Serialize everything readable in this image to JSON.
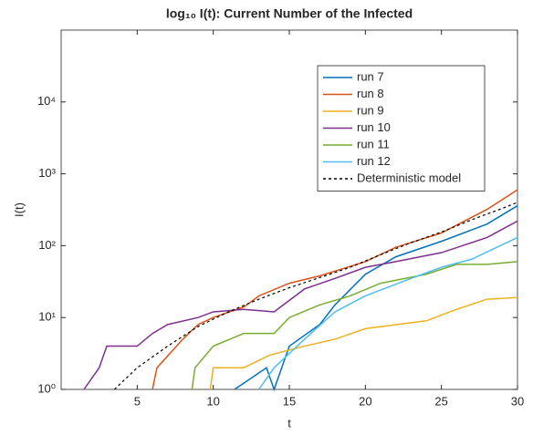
{
  "chart_data": {
    "type": "line",
    "title": "log₁₀ I(t): Current Number of the Infected",
    "xlabel": "t",
    "ylabel": "I(t)",
    "log_y": true,
    "legend": "upper right",
    "xlim": [
      0,
      30
    ],
    "xticks": [
      5,
      10,
      15,
      20,
      25,
      30
    ],
    "ylim": [
      1,
      100000
    ],
    "yticks": [
      {
        "value": 1,
        "label": "10⁰"
      },
      {
        "value": 10,
        "label": "10¹"
      },
      {
        "value": 100,
        "label": "10²"
      },
      {
        "value": 1000,
        "label": "10³"
      },
      {
        "value": 10000,
        "label": "10⁴"
      }
    ],
    "series": [
      {
        "name": "run 7",
        "color": "#0072bd",
        "x": [
          11.4,
          13.5,
          14,
          15,
          17,
          18,
          20,
          22,
          25,
          28,
          30
        ],
        "values": [
          1,
          2,
          1,
          4,
          8,
          15,
          40,
          70,
          115,
          200,
          360
        ]
      },
      {
        "name": "run 8",
        "color": "#d95319",
        "x": [
          6,
          6.3,
          8,
          9,
          10,
          12,
          13,
          15,
          17,
          20,
          22,
          25,
          28,
          30
        ],
        "values": [
          1,
          2,
          5,
          8,
          10,
          14,
          20,
          30,
          38,
          60,
          95,
          150,
          320,
          600
        ]
      },
      {
        "name": "run 9",
        "color": "#edb120",
        "x": [
          9.8,
          10,
          12,
          13.7,
          16,
          18,
          20,
          24,
          26,
          28,
          30
        ],
        "values": [
          1,
          2,
          2,
          3,
          4,
          5,
          7,
          9,
          13,
          18,
          19
        ]
      },
      {
        "name": "run 10",
        "color": "#7e2f8e",
        "x": [
          1.5,
          2.5,
          3,
          5,
          6,
          7,
          9,
          10,
          12,
          14,
          16,
          18,
          20,
          22,
          25,
          28,
          30
        ],
        "values": [
          1,
          2,
          4,
          4,
          6,
          8,
          10,
          12,
          13,
          12,
          25,
          35,
          50,
          60,
          80,
          130,
          220
        ]
      },
      {
        "name": "run 11",
        "color": "#77ac30",
        "x": [
          8.6,
          8.8,
          10,
          12,
          14,
          15,
          17,
          19,
          21,
          24,
          26,
          28,
          30
        ],
        "values": [
          1,
          2,
          4,
          6,
          6,
          10,
          15,
          20,
          30,
          40,
          55,
          55,
          60
        ]
      },
      {
        "name": "run 12",
        "color": "#4dbeee",
        "x": [
          13,
          14,
          16,
          18,
          20,
          23,
          25,
          27,
          30
        ],
        "values": [
          1,
          2,
          5,
          12,
          20,
          35,
          50,
          65,
          130
        ]
      },
      {
        "name": "Deterministic model",
        "color": "#000000",
        "dashed": true,
        "x": [
          3.5,
          5,
          7,
          9,
          11,
          13,
          15,
          17,
          19,
          21,
          23,
          25,
          27,
          29,
          30
        ],
        "values": [
          1,
          2,
          4,
          7.5,
          12,
          18,
          26,
          36,
          50,
          75,
          110,
          155,
          230,
          330,
          400
        ]
      }
    ]
  }
}
